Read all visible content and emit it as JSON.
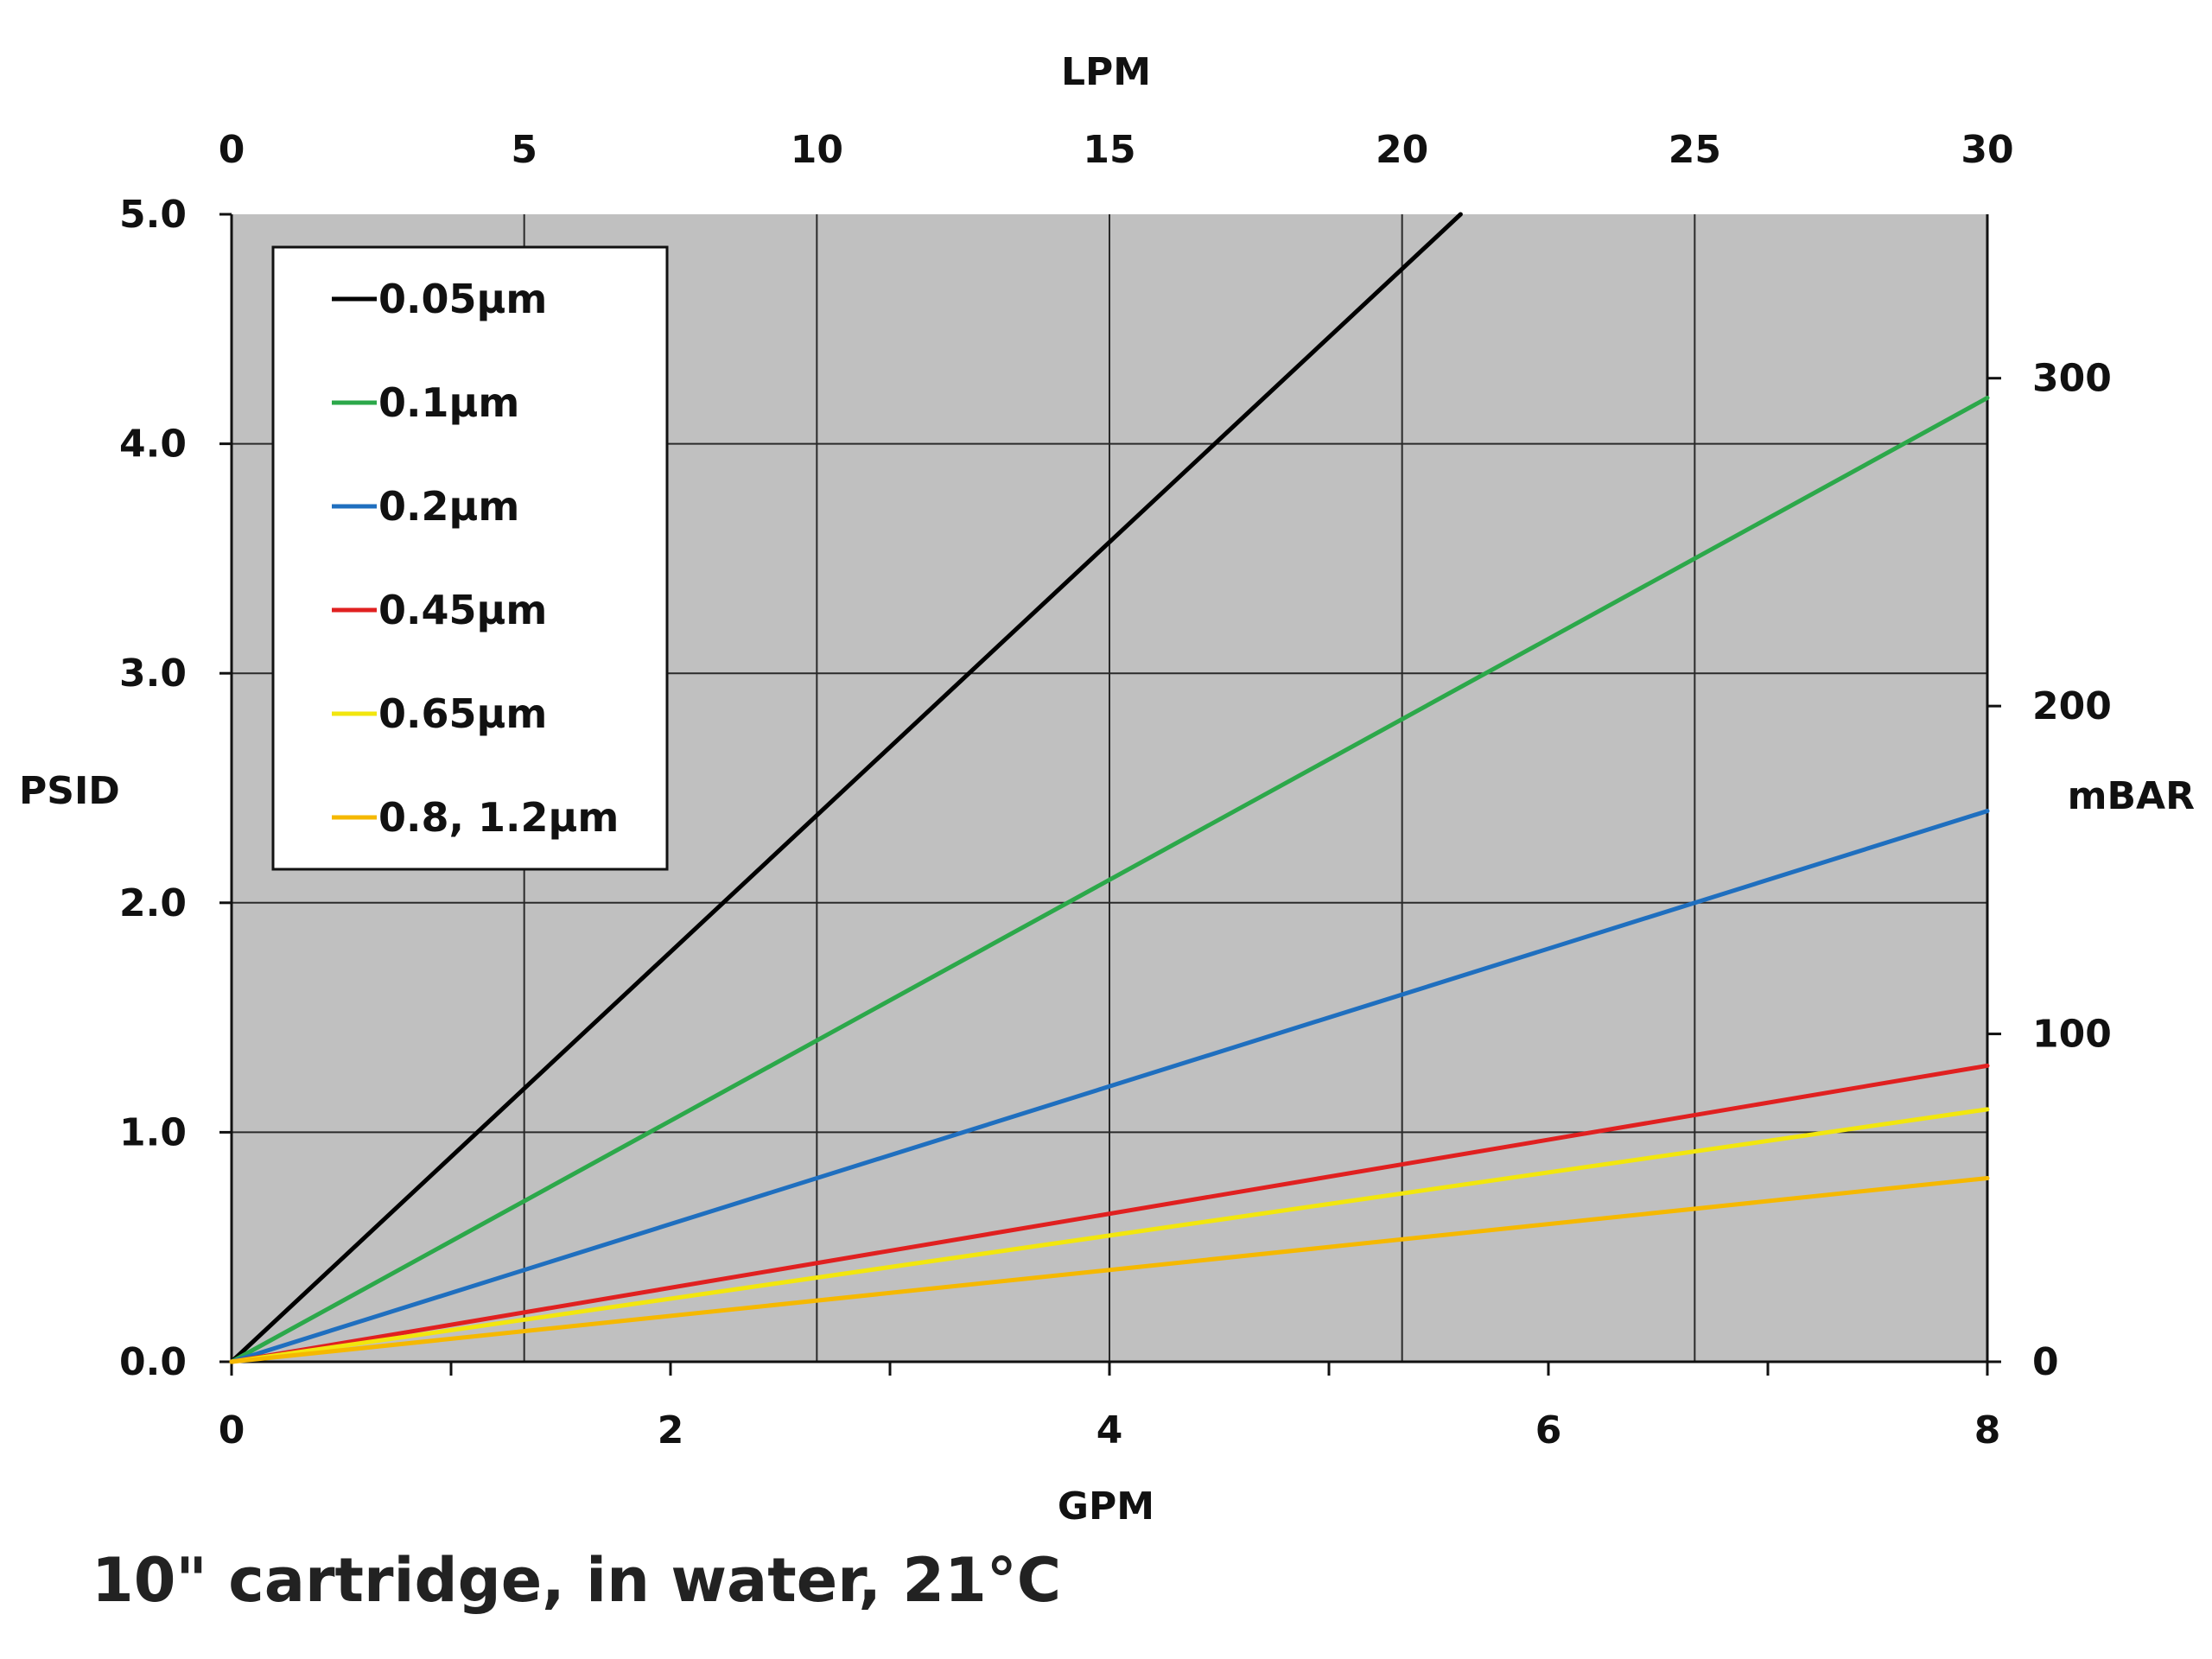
{
  "caption": "10\" cartridge, in water, 21°C",
  "chart_data": {
    "type": "line",
    "title": "",
    "xlabel": "GPM",
    "ylabel": "PSID",
    "x2label": "LPM",
    "y2label": "mBAR",
    "xlim": [
      0,
      8
    ],
    "ylim": [
      0,
      5
    ],
    "x2lim": [
      0,
      30
    ],
    "y2lim": [
      0,
      350
    ],
    "xticks": [
      "0",
      "2",
      "4",
      "6",
      "8"
    ],
    "yticks": [
      "0.0",
      "1.0",
      "2.0",
      "3.0",
      "4.0",
      "5.0"
    ],
    "x2ticks": [
      "0",
      "5",
      "10",
      "15",
      "20",
      "25",
      "30"
    ],
    "y2ticks": [
      "0",
      "100",
      "200",
      "300"
    ],
    "grid": true,
    "legend_position": "top-left",
    "series": [
      {
        "name": "0.05µm",
        "color": "#000000",
        "x": [
          0,
          5.6
        ],
        "y": [
          0,
          5.0
        ]
      },
      {
        "name": "0.1µm",
        "color": "#2ca84a",
        "x": [
          0,
          8
        ],
        "y": [
          0,
          4.2
        ]
      },
      {
        "name": "0.2µm",
        "color": "#1f6fbf",
        "x": [
          0,
          8
        ],
        "y": [
          0,
          2.4
        ]
      },
      {
        "name": "0.45µm",
        "color": "#e02020",
        "x": [
          0,
          8
        ],
        "y": [
          0,
          1.29
        ]
      },
      {
        "name": "0.65µm",
        "color": "#f2e60e",
        "x": [
          0,
          8
        ],
        "y": [
          0,
          1.1
        ]
      },
      {
        "name": "0.8, 1.2µm",
        "color": "#f5b800",
        "x": [
          0,
          8
        ],
        "y": [
          0,
          0.8
        ]
      }
    ]
  }
}
